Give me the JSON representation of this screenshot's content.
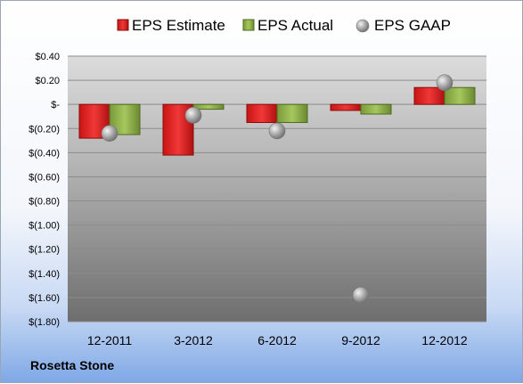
{
  "chart_data": {
    "type": "bar",
    "categories": [
      "12-2011",
      "3-2012",
      "6-2012",
      "9-2012",
      "12-2012"
    ],
    "series": [
      {
        "name": "EPS Estimate",
        "type": "bar",
        "color": "#e02020",
        "values": [
          -0.28,
          -0.42,
          -0.15,
          -0.05,
          0.14
        ]
      },
      {
        "name": "EPS Actual",
        "type": "bar",
        "color": "#8fb04a",
        "values": [
          -0.25,
          -0.04,
          -0.15,
          -0.08,
          0.14
        ]
      },
      {
        "name": "EPS GAAP",
        "type": "scatter",
        "color": "#a6a6a6",
        "values": [
          -0.24,
          -0.09,
          -0.22,
          -1.58,
          0.18
        ]
      }
    ],
    "yticks": [
      "$0.40",
      "$0.20",
      "$-",
      "$(0.20)",
      "$(0.40)",
      "$(0.60)",
      "$(0.80)",
      "$(1.00)",
      "$(1.20)",
      "$(1.40)",
      "$(1.60)",
      "$(1.80)"
    ],
    "ylim": [
      -1.8,
      0.4
    ],
    "legend_position": "top",
    "grid": true
  },
  "company": "Rosetta Stone"
}
